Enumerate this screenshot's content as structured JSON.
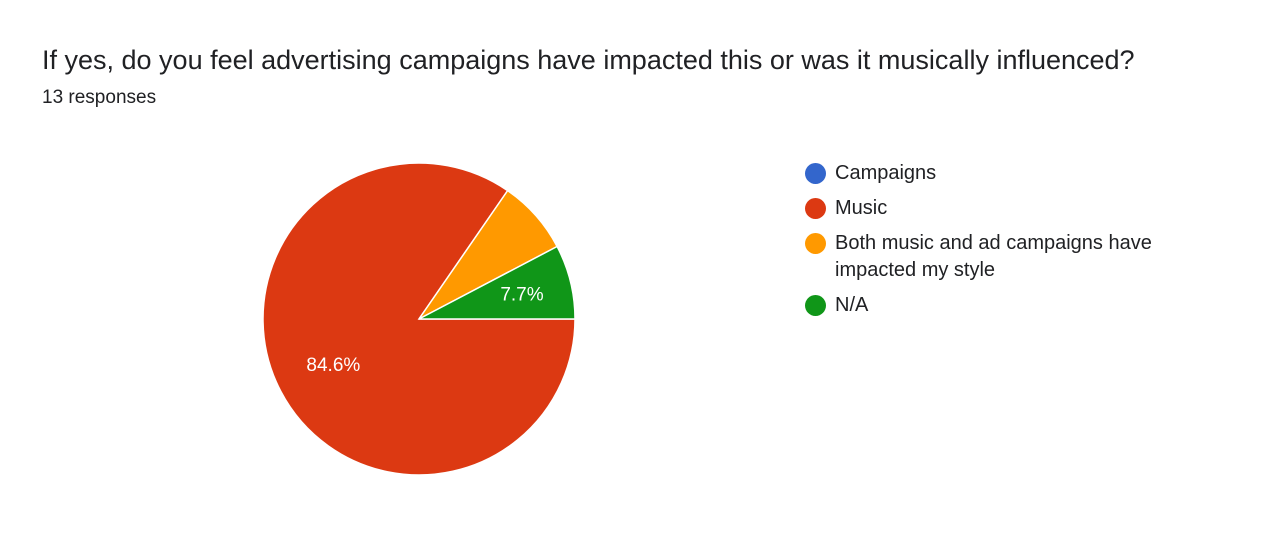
{
  "chart_data": {
    "type": "pie",
    "title": "If yes, do you feel advertising campaigns have impacted this or was it musically influenced?",
    "subtitle": "13 responses",
    "legend_position": "right",
    "slices": [
      {
        "label": "Campaigns",
        "value": 0,
        "percent_label": "",
        "color": "#3366cc"
      },
      {
        "label": "Music",
        "value": 11,
        "percent_label": "84.6%",
        "color": "#dc3912"
      },
      {
        "label": "Both music and ad campaigns have impacted my style",
        "value": 1,
        "percent_label": "",
        "color": "#ff9900"
      },
      {
        "label": "N/A",
        "value": 1,
        "percent_label": "7.7%",
        "color": "#109618"
      }
    ]
  }
}
